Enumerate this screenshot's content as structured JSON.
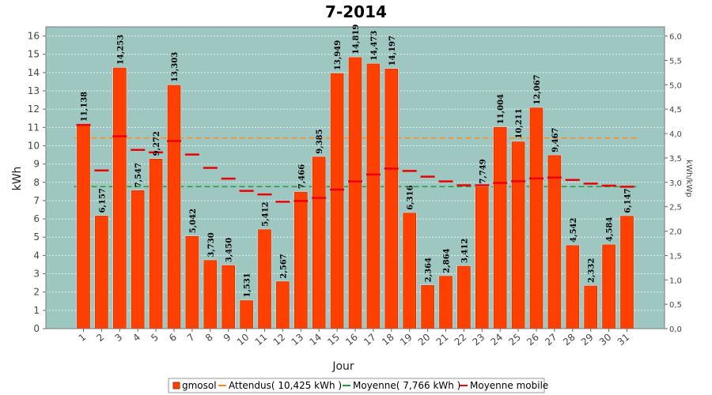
{
  "chart_data": {
    "type": "bar",
    "title": "7-2014",
    "xlabel": "Jour",
    "ylabel": "kWh",
    "ylabel_right": "kWh/kWp",
    "ylim": [
      0,
      16.5
    ],
    "ylim_right": [
      0,
      6.1875
    ],
    "yticks": [
      0,
      1,
      2,
      3,
      4,
      5,
      6,
      7,
      8,
      9,
      10,
      11,
      12,
      13,
      14,
      15,
      16
    ],
    "yticks_right": [
      "0,0",
      "0,5",
      "1,0",
      "1,5",
      "2,0",
      "2,5",
      "3,0",
      "3,5",
      "4,0",
      "4,5",
      "5,0",
      "5,5",
      "6,0"
    ],
    "grid": true,
    "legend_position": "bottom",
    "categories": [
      "1",
      "2",
      "3",
      "4",
      "5",
      "6",
      "7",
      "8",
      "9",
      "10",
      "11",
      "12",
      "13",
      "14",
      "15",
      "16",
      "17",
      "18",
      "19",
      "20",
      "21",
      "22",
      "23",
      "24",
      "25",
      "26",
      "27",
      "28",
      "29",
      "30",
      "31"
    ],
    "series": [
      {
        "name": "gmosol",
        "color": "#ff4000",
        "values": [
          11.138,
          6.157,
          14.253,
          7.547,
          9.272,
          13.303,
          5.042,
          3.73,
          3.45,
          1.531,
          5.412,
          2.567,
          7.466,
          9.385,
          13.949,
          14.819,
          14.473,
          14.197,
          6.316,
          2.364,
          2.864,
          3.412,
          7.749,
          11.004,
          10.211,
          12.067,
          9.467,
          4.542,
          2.332,
          4.584,
          6.147
        ],
        "labels": [
          "11,138",
          "6,157",
          "14,253",
          "7,547",
          "9,272",
          "13,303",
          "5,042",
          "3,730",
          "3,450",
          "1,531",
          "5,412",
          "2,567",
          "7,466",
          "9,385",
          "13,949",
          "14,819",
          "14,473",
          "14,197",
          "6,316",
          "2,364",
          "2,864",
          "3,412",
          "7,749",
          "11,004",
          "10,211",
          "12,067",
          "9,467",
          "4,542",
          "2,332",
          "4,584",
          "6,147"
        ]
      },
      {
        "name": "Moyenne mobile",
        "color": "#ee0000",
        "values": [
          11.138,
          8.65,
          10.52,
          9.77,
          9.64,
          10.26,
          9.52,
          8.79,
          8.2,
          7.53,
          7.34,
          6.94,
          6.98,
          7.15,
          7.6,
          8.05,
          8.43,
          8.75,
          8.62,
          8.31,
          8.05,
          7.84,
          7.84,
          7.97,
          8.06,
          8.21,
          8.26,
          8.13,
          7.93,
          7.82,
          7.76
        ]
      }
    ],
    "reference_lines": [
      {
        "name": "Attendus( 10,425 kWh )",
        "value": 10.425,
        "color": "#ff8c1a"
      },
      {
        "name": "Moyenne( 7,766 kWh )",
        "value": 7.766,
        "color": "#1f9e3a"
      }
    ],
    "colors": {
      "plot_background": "#9ec7c2",
      "grid": "#e8f4f2",
      "bar_edge": "#b03000"
    }
  }
}
